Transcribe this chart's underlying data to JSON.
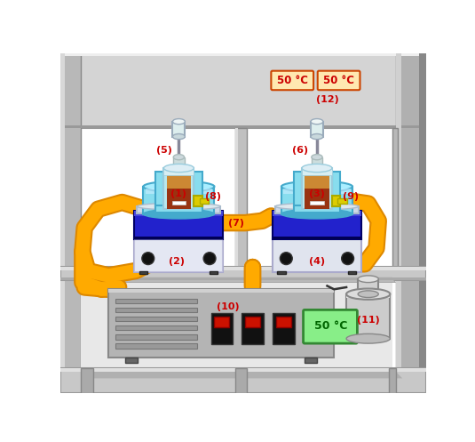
{
  "bg_color": "#ffffff",
  "frame_outer_color": "#b0b0b0",
  "frame_inner_color": "#cccccc",
  "shelf_top_bg": "#d8d8d8",
  "shelf_mid_color": "#c8c8c8",
  "shelf_bot_color": "#c8c8c8",
  "blue_main": "#2222cc",
  "blue_top": "#4444dd",
  "blue_front": "#1111aa",
  "hotplate_top": "#d0d8e8",
  "cyan_bath": "#88ddee",
  "cyan_dark": "#44aacc",
  "cyan_outer": "#66ccdd",
  "vessel_glass": "#b8e8ee",
  "vessel_brown_top": "#cc8833",
  "vessel_brown_bot": "#882200",
  "vessel_outer": "#99ccdd",
  "syringe_color": "#ccdddd",
  "syringe_tip": "#aabbbb",
  "valve_yellow": "#ddcc00",
  "valve_dark": "#aaaa00",
  "orange_tube": "#ffaa00",
  "orange_dark": "#dd8800",
  "label_red": "#cc0000",
  "temp_bg": "#ffe8b0",
  "temp_border": "#cc4400",
  "green_display": "#88ee88",
  "green_border": "#338833",
  "green_text": "#006600",
  "box_gray": "#aaaaaa",
  "box_dark": "#888888",
  "cylinder_gray": "#cccccc",
  "black_dot": "#111111",
  "white_panel": "#e8eaf0",
  "label12": "(12)",
  "label5": "(5)",
  "label6": "(6)",
  "label7": "(7)",
  "label8": "(8)",
  "label9": "(9)",
  "label1": "(1)",
  "label2": "(2)",
  "label3": "(3)",
  "label4": "(4)",
  "label10": "(10)",
  "label11": "(11)",
  "temp1": "50 °C",
  "temp2": "50 °C",
  "temp3": "50 °C"
}
